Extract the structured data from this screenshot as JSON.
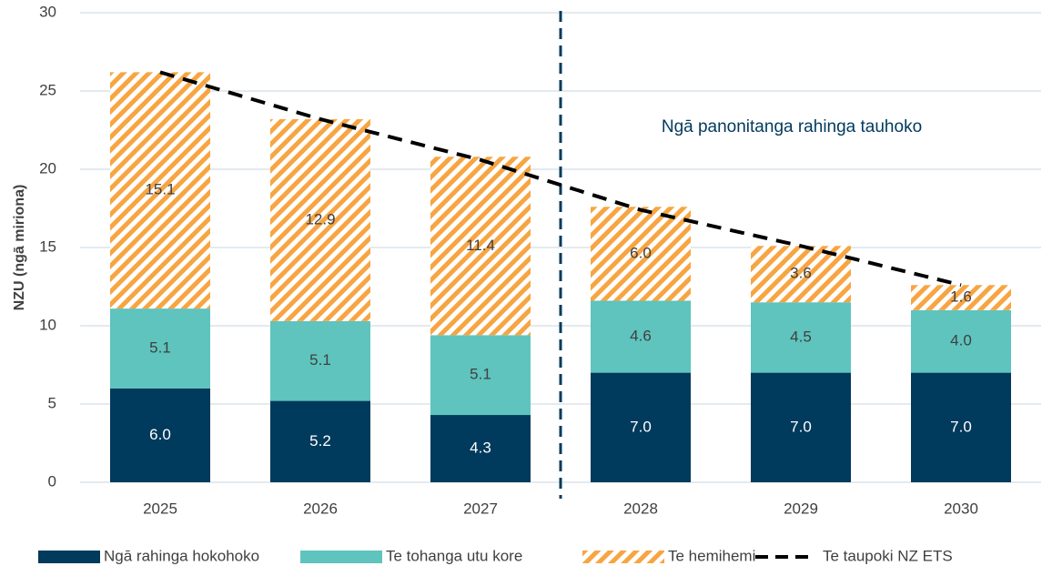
{
  "chart_data": {
    "type": "bar",
    "stacked": true,
    "y_label": "NZU (ngā miriona)",
    "annotation": "Ngā panonitanga rahinga tauhoko",
    "categories": [
      "2025",
      "2026",
      "2027",
      "2028",
      "2029",
      "2030"
    ],
    "series": [
      {
        "name": "Ngā rahinga hokohoko",
        "color": "#003a5c",
        "values": [
          6.0,
          5.2,
          4.3,
          7.0,
          7.0,
          7.0
        ],
        "value_labels": [
          "6.0",
          "5.2",
          "4.3",
          "7.0",
          "7.0",
          "7.0"
        ]
      },
      {
        "name": "Te tohanga utu kore",
        "color": "#5ec4bd",
        "values": [
          5.1,
          5.1,
          5.1,
          4.6,
          4.5,
          4.0
        ],
        "value_labels": [
          "5.1",
          "5.1",
          "5.1",
          "4.6",
          "4.5",
          "4.0"
        ]
      },
      {
        "name": "Te hemihemi",
        "color": "#f7a542",
        "hatch": true,
        "values": [
          15.1,
          12.9,
          11.4,
          6.0,
          3.6,
          1.6
        ],
        "value_labels": [
          "15.1",
          "12.9",
          "11.4",
          "6.0",
          "3.6",
          "1.6"
        ]
      },
      {
        "name": "Te taupoki NZ ETS",
        "color": "#000000",
        "type": "line",
        "dashed": true,
        "values": [
          26.2,
          23.2,
          20.6,
          17.4,
          15.1,
          12.6
        ]
      }
    ],
    "ylim": [
      0,
      30
    ],
    "yticks": [
      0,
      5,
      10,
      15,
      20,
      25,
      30
    ],
    "grid": true
  }
}
